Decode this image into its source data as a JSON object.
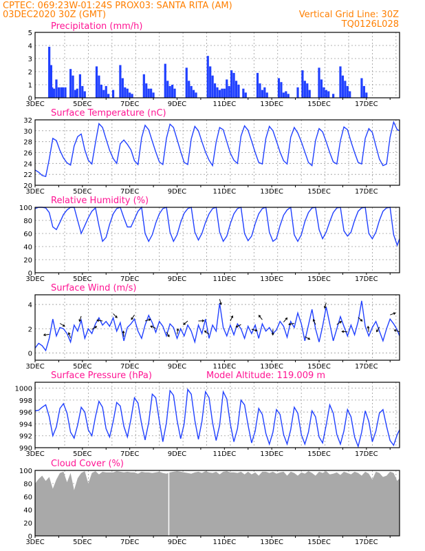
{
  "header": {
    "line1_left": "CPTEC:   069:23W-01:24S   PROX03: SANTA RITA (AM)",
    "line2_left": "03DEC2020 30Z (GMT)",
    "line2_right": "Vertical Grid Line: 30Z",
    "line3_right": "TQ0126L028"
  },
  "colors": {
    "header": "#ff7f00",
    "title": "#ff1493",
    "series": "#2040ff",
    "cloud": "#a9a9a9",
    "grid": "#999999"
  },
  "x_labels": [
    "3DEC",
    "5DEC",
    "7DEC",
    "9DEC",
    "11DEC",
    "13DEC",
    "15DEC",
    "17DEC"
  ],
  "panel_extras": {
    "pressure_altitude": "Model Altitude: 119.009 m"
  },
  "chart_data": [
    {
      "id": "precip",
      "type": "bar",
      "title": "Precipitation (mm/h)",
      "unit_days": true,
      "xlim": [
        3,
        18.4
      ],
      "ylim": [
        0,
        5
      ],
      "yticks": [
        0,
        1,
        2,
        3,
        4,
        5
      ],
      "x": [
        3.6,
        3.68,
        3.72,
        3.8,
        3.9,
        4.0,
        4.1,
        4.18,
        4.28,
        4.5,
        4.6,
        4.7,
        4.78,
        4.9,
        5.0,
        5.1,
        5.6,
        5.7,
        5.8,
        5.9,
        6.0,
        6.1,
        6.3,
        6.6,
        6.7,
        6.8,
        6.9,
        7.0,
        7.1,
        7.6,
        7.7,
        7.8,
        7.9,
        8.0,
        8.5,
        8.6,
        8.7,
        8.8,
        8.9,
        9.4,
        9.5,
        9.6,
        9.7,
        9.8,
        10.3,
        10.4,
        10.5,
        10.6,
        10.7,
        10.8,
        10.9,
        11.0,
        11.1,
        11.2,
        11.3,
        11.4,
        11.5,
        11.6,
        11.8,
        11.9,
        12.4,
        12.5,
        12.6,
        12.7,
        12.8,
        13.3,
        13.4,
        13.5,
        13.6,
        13.7,
        14.1,
        14.3,
        14.4,
        14.5,
        14.6,
        15.0,
        15.1,
        15.2,
        15.3,
        15.4,
        15.6,
        15.9,
        16.0,
        16.1,
        16.2,
        16.3,
        16.8,
        16.9,
        17.0
      ],
      "values": [
        3.9,
        2.5,
        0.8,
        0.7,
        1.4,
        0.8,
        0.8,
        0.8,
        0.8,
        2.2,
        1.7,
        0.6,
        0.7,
        1.8,
        0.9,
        0.5,
        2.4,
        1.7,
        1.0,
        0.6,
        0.9,
        0.3,
        0.6,
        2.5,
        1.5,
        0.8,
        0.7,
        0.4,
        0.3,
        1.8,
        1.1,
        0.7,
        0.7,
        0.4,
        2.6,
        1.3,
        0.9,
        1.0,
        0.7,
        2.3,
        1.3,
        0.9,
        0.6,
        0.4,
        3.2,
        2.4,
        1.7,
        1.1,
        0.8,
        0.6,
        0.7,
        0.7,
        1.4,
        0.9,
        2.1,
        1.9,
        1.3,
        1.0,
        0.7,
        0.4,
        1.9,
        1.1,
        0.6,
        0.8,
        0.4,
        1.5,
        1.2,
        0.4,
        0.5,
        0.3,
        0.8,
        2.1,
        1.3,
        1.1,
        0.6,
        2.3,
        1.4,
        0.8,
        0.6,
        0.5,
        0.3,
        2.4,
        1.7,
        1.3,
        0.9,
        0.5,
        1.5,
        0.9,
        0.4
      ]
    },
    {
      "id": "temp",
      "type": "line",
      "title": "Surface Temperature (nC)",
      "xlim": [
        3,
        18.4
      ],
      "ylim": [
        20,
        32
      ],
      "yticks": [
        20,
        22,
        24,
        26,
        28,
        30,
        32
      ],
      "x": [
        3.0,
        3.15,
        3.3,
        3.45,
        3.6,
        3.75,
        3.9,
        4.05,
        4.2,
        4.35,
        4.5,
        4.65,
        4.8,
        4.95,
        5.1,
        5.25,
        5.4,
        5.55,
        5.7,
        5.85,
        6.0,
        6.15,
        6.3,
        6.45,
        6.6,
        6.75,
        6.9,
        7.05,
        7.2,
        7.35,
        7.5,
        7.65,
        7.8,
        7.95,
        8.1,
        8.25,
        8.4,
        8.55,
        8.7,
        8.85,
        9.0,
        9.15,
        9.3,
        9.45,
        9.6,
        9.75,
        9.9,
        10.05,
        10.2,
        10.35,
        10.5,
        10.65,
        10.8,
        10.95,
        11.1,
        11.25,
        11.4,
        11.55,
        11.7,
        11.85,
        12.0,
        12.15,
        12.3,
        12.45,
        12.6,
        12.75,
        12.9,
        13.05,
        13.2,
        13.35,
        13.5,
        13.65,
        13.8,
        13.95,
        14.1,
        14.25,
        14.4,
        14.55,
        14.7,
        14.85,
        15.0,
        15.15,
        15.3,
        15.45,
        15.6,
        15.75,
        15.9,
        16.05,
        16.2,
        16.35,
        16.5,
        16.65,
        16.8,
        16.95,
        17.1,
        17.25,
        17.4,
        17.55,
        17.7,
        17.85,
        18.0,
        18.15,
        18.3,
        18.4
      ],
      "values": [
        22.8,
        22.4,
        21.8,
        21.6,
        24.8,
        28.6,
        28.2,
        26.4,
        25.0,
        24.1,
        23.7,
        27.2,
        28.9,
        29.4,
        26.5,
        24.6,
        23.9,
        27.8,
        31.3,
        30.6,
        28.5,
        26.4,
        24.9,
        24.0,
        27.6,
        28.3,
        27.5,
        26.5,
        24.5,
        23.8,
        28.7,
        31.0,
        30.2,
        28.1,
        26.1,
        24.3,
        23.8,
        28.6,
        31.2,
        30.6,
        28.4,
        26.2,
        24.2,
        23.8,
        28.5,
        30.8,
        30.0,
        28.0,
        26.1,
        24.6,
        23.6,
        27.9,
        30.6,
        30.2,
        28.0,
        25.9,
        24.6,
        24.0,
        29.0,
        30.9,
        30.1,
        28.1,
        26.0,
        24.2,
        23.9,
        28.6,
        30.8,
        30.0,
        28.1,
        26.1,
        24.5,
        23.9,
        28.8,
        30.6,
        29.6,
        28.0,
        26.1,
        24.2,
        23.6,
        28.2,
        30.4,
        29.8,
        28.0,
        26.0,
        24.3,
        23.9,
        28.2,
        30.7,
        30.2,
        28.0,
        26.0,
        24.2,
        23.9,
        28.6,
        30.4,
        29.7,
        27.2,
        24.8,
        23.6,
        23.9,
        28.8,
        31.6,
        30.2,
        30.0
      ]
    },
    {
      "id": "rh",
      "type": "line",
      "title": "Relative Humidity (%)",
      "xlim": [
        3,
        18.4
      ],
      "ylim": [
        0,
        100
      ],
      "yticks": [
        0,
        20,
        40,
        60,
        80,
        100
      ],
      "x": [
        3.0,
        3.15,
        3.3,
        3.45,
        3.6,
        3.75,
        3.9,
        4.05,
        4.2,
        4.35,
        4.5,
        4.65,
        4.8,
        4.95,
        5.1,
        5.25,
        5.4,
        5.55,
        5.7,
        5.85,
        6.0,
        6.15,
        6.3,
        6.45,
        6.6,
        6.75,
        6.9,
        7.05,
        7.2,
        7.35,
        7.5,
        7.65,
        7.8,
        7.95,
        8.1,
        8.25,
        8.4,
        8.55,
        8.7,
        8.85,
        9.0,
        9.15,
        9.3,
        9.45,
        9.6,
        9.75,
        9.9,
        10.05,
        10.2,
        10.35,
        10.5,
        10.65,
        10.8,
        10.95,
        11.1,
        11.25,
        11.4,
        11.55,
        11.7,
        11.85,
        12.0,
        12.15,
        12.3,
        12.45,
        12.6,
        12.75,
        12.9,
        13.05,
        13.2,
        13.35,
        13.5,
        13.65,
        13.8,
        13.95,
        14.1,
        14.25,
        14.4,
        14.55,
        14.7,
        14.85,
        15.0,
        15.15,
        15.3,
        15.45,
        15.6,
        15.75,
        15.9,
        16.05,
        16.2,
        16.35,
        16.5,
        16.65,
        16.8,
        16.95,
        17.1,
        17.25,
        17.4,
        17.55,
        17.7,
        17.85,
        18.0,
        18.15,
        18.3,
        18.4
      ],
      "values": [
        98,
        100,
        100,
        99,
        92,
        70,
        66,
        77,
        89,
        96,
        100,
        100,
        80,
        60,
        72,
        84,
        94,
        99,
        72,
        48,
        54,
        74,
        90,
        98,
        100,
        84,
        70,
        70,
        82,
        94,
        100,
        60,
        48,
        58,
        76,
        90,
        98,
        100,
        62,
        48,
        58,
        77,
        91,
        98,
        100,
        62,
        50,
        60,
        77,
        90,
        98,
        100,
        62,
        48,
        56,
        75,
        90,
        98,
        100,
        60,
        49,
        56,
        75,
        90,
        98,
        100,
        62,
        48,
        52,
        72,
        88,
        96,
        100,
        58,
        48,
        58,
        78,
        92,
        99,
        100,
        66,
        52,
        62,
        78,
        92,
        99,
        100,
        64,
        56,
        62,
        80,
        94,
        99,
        100,
        60,
        52,
        62,
        80,
        94,
        99,
        100,
        58,
        42,
        52
      ]
    },
    {
      "id": "wind",
      "type": "line",
      "title": "Surface Wind (m/s)",
      "xlim": [
        3,
        18.4
      ],
      "ylim": [
        -0.6,
        4.8
      ],
      "yticks": [
        0,
        2,
        4
      ],
      "x": [
        3.0,
        3.15,
        3.3,
        3.45,
        3.6,
        3.75,
        3.9,
        4.05,
        4.2,
        4.35,
        4.5,
        4.65,
        4.8,
        4.95,
        5.1,
        5.25,
        5.4,
        5.55,
        5.7,
        5.85,
        6.0,
        6.15,
        6.3,
        6.45,
        6.6,
        6.75,
        6.9,
        7.05,
        7.2,
        7.35,
        7.5,
        7.65,
        7.8,
        7.95,
        8.1,
        8.25,
        8.4,
        8.55,
        8.7,
        8.85,
        9.0,
        9.15,
        9.3,
        9.45,
        9.6,
        9.75,
        9.9,
        10.05,
        10.2,
        10.35,
        10.5,
        10.65,
        10.8,
        10.95,
        11.1,
        11.25,
        11.4,
        11.55,
        11.7,
        11.85,
        12.0,
        12.15,
        12.3,
        12.45,
        12.6,
        12.75,
        12.9,
        13.05,
        13.2,
        13.35,
        13.5,
        13.65,
        13.8,
        13.95,
        14.1,
        14.25,
        14.4,
        14.55,
        14.7,
        14.85,
        15.0,
        15.15,
        15.3,
        15.45,
        15.6,
        15.75,
        15.9,
        16.05,
        16.2,
        16.35,
        16.5,
        16.65,
        16.8,
        16.95,
        17.1,
        17.25,
        17.4,
        17.55,
        17.7,
        17.85,
        18.0,
        18.15,
        18.3,
        18.4
      ],
      "values": [
        0.4,
        0.8,
        0.6,
        0.2,
        1.2,
        2.8,
        1.4,
        2.1,
        2.0,
        1.6,
        0.9,
        2.3,
        1.8,
        2.7,
        1.2,
        2.0,
        1.6,
        2.4,
        2.9,
        2.3,
        2.6,
        2.2,
        2.9,
        1.8,
        2.5,
        1.0,
        2.1,
        2.4,
        2.8,
        1.8,
        1.2,
        2.3,
        3.1,
        2.5,
        1.7,
        2.6,
        2.2,
        1.4,
        2.4,
        2.1,
        1.2,
        2.0,
        1.4,
        2.3,
        1.8,
        0.9,
        2.3,
        1.6,
        2.8,
        1.2,
        2.3,
        1.8,
        4.1,
        2.1,
        1.4,
        2.3,
        1.5,
        2.4,
        2.0,
        1.2,
        2.2,
        1.6,
        2.3,
        1.2,
        2.4,
        1.8,
        2.1,
        1.6,
        1.9,
        2.6,
        2.2,
        1.3,
        2.6,
        2.1,
        3.3,
        2.4,
        1.0,
        2.3,
        3.6,
        2.0,
        0.9,
        2.2,
        3.8,
        2.4,
        1.0,
        2.0,
        3.0,
        2.2,
        1.4,
        2.3,
        1.5,
        2.6,
        4.3,
        2.2,
        1.4,
        2.1,
        2.6,
        1.8,
        1.0,
        2.0,
        2.8,
        2.4,
        1.9,
        1.4
      ]
    },
    {
      "id": "pressure",
      "type": "line",
      "title": "Surface Pressure (hPa)",
      "xlim": [
        3,
        18.4
      ],
      "ylim": [
        990,
        1001
      ],
      "yticks": [
        990,
        992,
        994,
        996,
        998,
        1000
      ],
      "x": [
        3.0,
        3.15,
        3.3,
        3.45,
        3.6,
        3.75,
        3.9,
        4.05,
        4.2,
        4.35,
        4.5,
        4.65,
        4.8,
        4.95,
        5.1,
        5.25,
        5.4,
        5.55,
        5.7,
        5.85,
        6.0,
        6.15,
        6.3,
        6.45,
        6.6,
        6.75,
        6.9,
        7.05,
        7.2,
        7.35,
        7.5,
        7.65,
        7.8,
        7.95,
        8.1,
        8.25,
        8.4,
        8.55,
        8.7,
        8.85,
        9.0,
        9.15,
        9.3,
        9.45,
        9.6,
        9.75,
        9.9,
        10.05,
        10.2,
        10.35,
        10.5,
        10.65,
        10.8,
        10.95,
        11.1,
        11.25,
        11.4,
        11.55,
        11.7,
        11.85,
        12.0,
        12.15,
        12.3,
        12.45,
        12.6,
        12.75,
        12.9,
        13.05,
        13.2,
        13.35,
        13.5,
        13.65,
        13.8,
        13.95,
        14.1,
        14.25,
        14.4,
        14.55,
        14.7,
        14.85,
        15.0,
        15.15,
        15.3,
        15.45,
        15.6,
        15.75,
        15.9,
        16.05,
        16.2,
        16.35,
        16.5,
        16.65,
        16.8,
        16.95,
        17.1,
        17.25,
        17.4,
        17.55,
        17.7,
        17.85,
        18.0,
        18.15,
        18.3,
        18.4
      ],
      "values": [
        996.2,
        996.3,
        996.8,
        997.2,
        995.2,
        992.0,
        993.5,
        996.6,
        997.4,
        995.8,
        992.6,
        991.6,
        993.8,
        996.8,
        996.0,
        993.0,
        992.0,
        995.2,
        997.8,
        996.8,
        993.2,
        991.8,
        994.4,
        997.6,
        997.0,
        993.6,
        991.8,
        994.8,
        998.4,
        997.5,
        994.0,
        991.3,
        994.2,
        999.0,
        998.4,
        994.5,
        991.0,
        994.2,
        999.6,
        998.8,
        994.6,
        991.5,
        994.0,
        999.8,
        999.0,
        994.6,
        991.4,
        994.4,
        999.4,
        998.4,
        994.2,
        991.2,
        993.8,
        999.4,
        998.2,
        994.0,
        991.0,
        993.2,
        998.0,
        997.2,
        993.8,
        990.8,
        992.8,
        996.6,
        995.6,
        992.4,
        990.6,
        992.6,
        996.4,
        995.6,
        992.2,
        990.6,
        993.0,
        996.8,
        995.8,
        992.2,
        990.6,
        992.6,
        996.2,
        995.2,
        991.8,
        990.8,
        993.8,
        997.2,
        995.8,
        992.2,
        990.6,
        992.8,
        996.4,
        995.2,
        991.8,
        990.2,
        992.6,
        996.2,
        994.4,
        991.0,
        992.8,
        995.8,
        996.4,
        993.6,
        991.2,
        990.4,
        992.2,
        993.0
      ]
    },
    {
      "id": "cloud",
      "type": "area",
      "title": "Cloud Cover (%)",
      "xlim": [
        3,
        18.4
      ],
      "ylim": [
        0,
        100
      ],
      "yticks": [
        0,
        20,
        40,
        60,
        80,
        100
      ],
      "x": [
        3.0,
        3.15,
        3.3,
        3.45,
        3.6,
        3.75,
        3.9,
        4.05,
        4.2,
        4.35,
        4.5,
        4.65,
        4.8,
        4.95,
        5.1,
        5.25,
        5.4,
        5.55,
        5.7,
        5.85,
        6.0,
        6.15,
        6.3,
        6.45,
        6.6,
        6.75,
        6.9,
        7.05,
        7.2,
        7.35,
        7.5,
        7.65,
        7.8,
        7.95,
        8.1,
        8.25,
        8.4,
        8.55,
        8.7,
        8.85,
        9.0,
        9.15,
        9.3,
        9.45,
        9.6,
        9.75,
        9.9,
        10.05,
        10.2,
        10.35,
        10.5,
        10.65,
        10.8,
        10.95,
        11.1,
        11.25,
        11.4,
        11.55,
        11.7,
        11.85,
        12.0,
        12.15,
        12.3,
        12.45,
        12.6,
        12.75,
        12.9,
        13.05,
        13.2,
        13.35,
        13.5,
        13.65,
        13.8,
        13.95,
        14.1,
        14.25,
        14.4,
        14.55,
        14.7,
        14.85,
        15.0,
        15.15,
        15.3,
        15.45,
        15.6,
        15.75,
        15.9,
        16.05,
        16.2,
        16.35,
        16.5,
        16.65,
        16.8,
        16.95,
        17.1,
        17.25,
        17.4,
        17.55,
        17.7,
        17.85,
        18.0,
        18.15,
        18.3,
        18.4
      ],
      "values": [
        80,
        87,
        92,
        84,
        90,
        72,
        86,
        96,
        98,
        82,
        96,
        70,
        88,
        96,
        99,
        80,
        96,
        99,
        94,
        98,
        97,
        97,
        97,
        99,
        98,
        97,
        98,
        97,
        97,
        95,
        98,
        97,
        97,
        96,
        97,
        98,
        96,
        95,
        97,
        98,
        99,
        98,
        97,
        96,
        95,
        97,
        98,
        96,
        99,
        97,
        96,
        98,
        94,
        98,
        99,
        97,
        97,
        96,
        98,
        94,
        98,
        94,
        97,
        92,
        98,
        98,
        96,
        98,
        95,
        97,
        98,
        92,
        98,
        96,
        92,
        97,
        95,
        99,
        96,
        92,
        98,
        96,
        99,
        94,
        95,
        97,
        93,
        98,
        96,
        94,
        98,
        96,
        92,
        98,
        95,
        86,
        98,
        96,
        90,
        92,
        98,
        96,
        84,
        88
      ],
      "dip_at": 8.65
    }
  ]
}
